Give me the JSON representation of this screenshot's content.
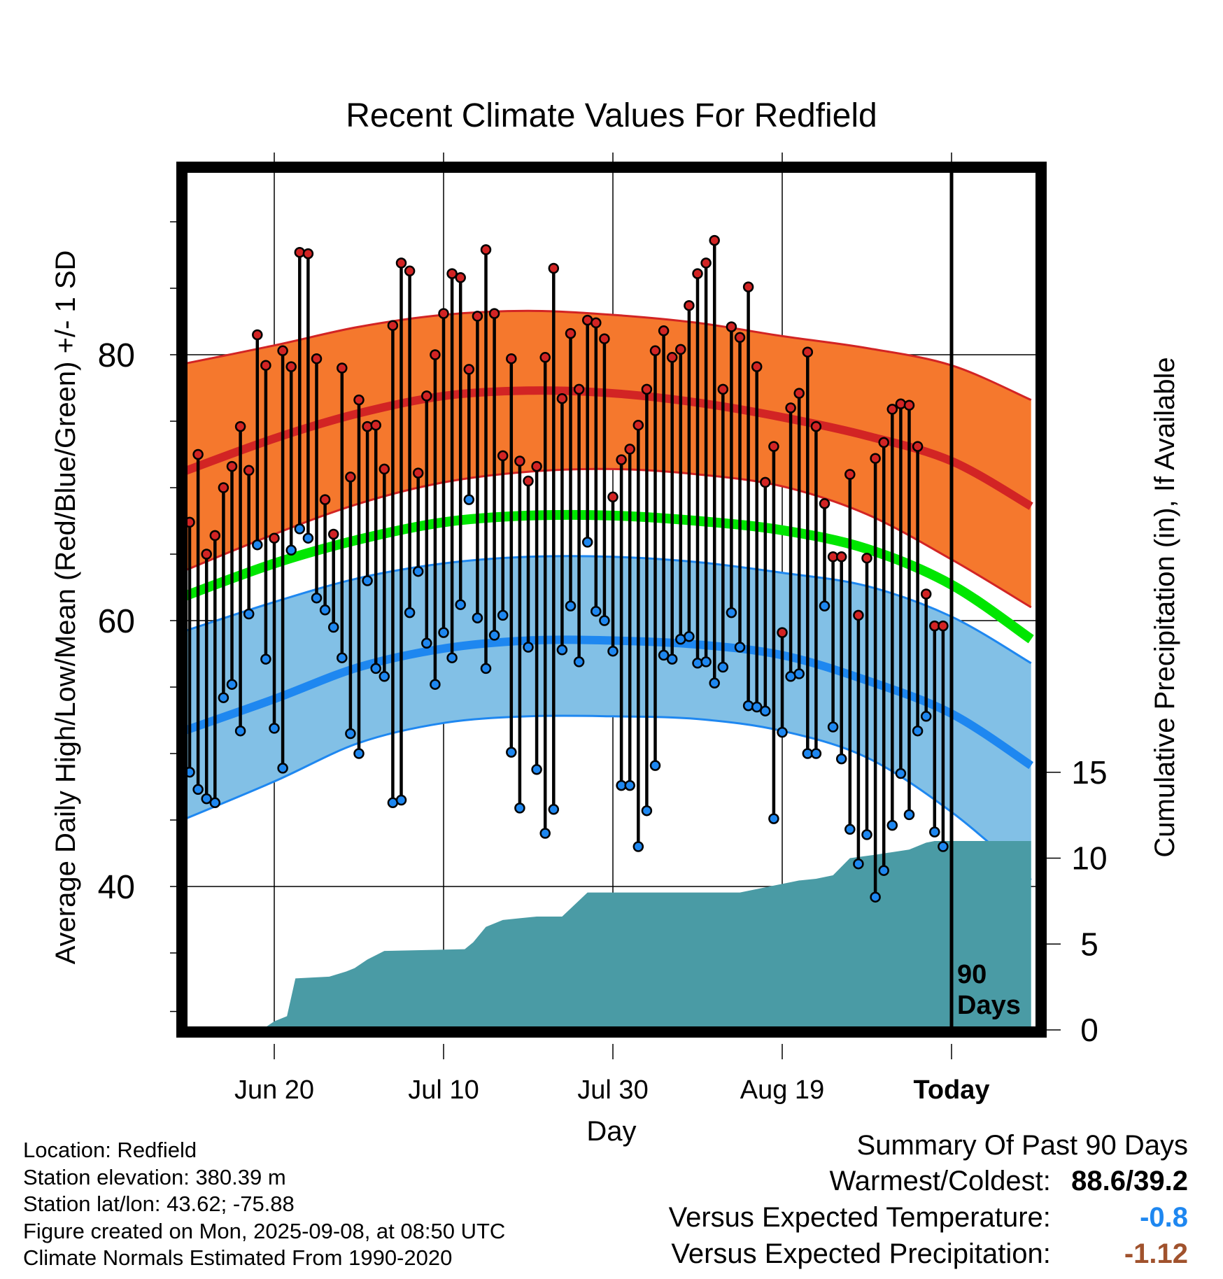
{
  "chart_data": {
    "type": "line",
    "title": "Recent Climate Values For Redfield",
    "xlabel": "Day",
    "ylabel": "Average Daily High/Low/Mean (Red/Blue/Green) +/- 1 SD",
    "y2label": "Cumulative Precipitation (in), If Available",
    "x_ticks": [
      "Jun 20",
      "Jul 10",
      "Jul 30",
      "Aug 19",
      "Today"
    ],
    "x_tick_days": [
      -80,
      -60,
      -40,
      -20,
      0
    ],
    "y_ticks": [
      40,
      60,
      80
    ],
    "y2_ticks": [
      0,
      5,
      10,
      15
    ],
    "ylim": [
      30.2,
      94.9
    ],
    "y2lim": [
      0,
      50
    ],
    "xlim": [
      -91.6,
      9.4
    ],
    "today_label": "90\nDays",
    "colors": {
      "high_band": "#f5782d",
      "high_line": "#d22424",
      "mean_line": "#00e600",
      "low_band": "#82c0e6",
      "low_line": "#1e87f0",
      "band_edge_high": "#d22424",
      "band_edge_low": "#1e87f0",
      "precip_fill": "#4a9ba5",
      "high_marker": "#d22424",
      "low_marker": "#1e87f0"
    },
    "normals": {
      "days": [
        -91.6,
        -80,
        -70,
        -60,
        -50,
        -40,
        -30,
        -20,
        -10,
        0,
        9.4
      ],
      "high_mean": [
        71.0,
        73.7,
        75.6,
        76.9,
        77.3,
        77.1,
        76.4,
        75.3,
        73.9,
        72.0,
        68.6
      ],
      "high_upper": [
        79.2,
        80.7,
        82.1,
        83.0,
        83.3,
        83.0,
        82.4,
        81.4,
        80.5,
        79.2,
        76.6
      ],
      "high_lower": [
        63.5,
        66.5,
        68.8,
        70.4,
        71.2,
        71.4,
        71.0,
        70.1,
        68.0,
        64.6,
        61.0
      ],
      "mean": [
        61.6,
        64.3,
        66.1,
        67.4,
        67.9,
        67.9,
        67.5,
        66.8,
        65.4,
        62.7,
        58.6
      ],
      "low_mean": [
        51.5,
        54.1,
        56.5,
        57.9,
        58.5,
        58.5,
        58.2,
        57.4,
        55.5,
        53.0,
        49.1
      ],
      "low_upper": [
        59.0,
        61.4,
        63.2,
        64.3,
        64.8,
        64.8,
        64.4,
        63.6,
        62.6,
        60.3,
        56.8
      ],
      "low_lower": [
        44.8,
        47.9,
        50.8,
        52.3,
        52.8,
        52.8,
        52.6,
        51.7,
        49.7,
        45.6,
        40.5
      ]
    },
    "series": [
      {
        "name": "Daily High",
        "days": [
          -90,
          -89,
          -88,
          -87,
          -86,
          -85,
          -84,
          -83,
          -82,
          -81,
          -80,
          -79,
          -78,
          -77,
          -76,
          -75,
          -74,
          -73,
          -72,
          -71,
          -70,
          -69,
          -68,
          -67,
          -66,
          -65,
          -64,
          -63,
          -62,
          -61,
          -60,
          -59,
          -58,
          -57,
          -56,
          -55,
          -54,
          -53,
          -52,
          -51,
          -50,
          -49,
          -48,
          -47,
          -46,
          -45,
          -44,
          -43,
          -42,
          -41,
          -40,
          -39,
          -38,
          -37,
          -36,
          -35,
          -34,
          -33,
          -32,
          -31,
          -30,
          -29,
          -28,
          -27,
          -26,
          -25,
          -24,
          -23,
          -22,
          -21,
          -20,
          -19,
          -18,
          -17,
          -16,
          -15,
          -14,
          -13,
          -12,
          -11,
          -10,
          -9,
          -8,
          -7,
          -6,
          -5,
          -4,
          -3,
          -2,
          -1
        ],
        "values": [
          67.4,
          72.5,
          65.0,
          66.4,
          70.0,
          71.6,
          74.6,
          71.3,
          81.5,
          79.2,
          66.2,
          80.3,
          79.1,
          87.7,
          87.6,
          79.7,
          69.1,
          66.5,
          79.0,
          70.8,
          76.6,
          74.6,
          74.7,
          71.4,
          82.2,
          86.9,
          86.3,
          71.1,
          76.9,
          80.0,
          83.1,
          86.1,
          85.8,
          78.9,
          82.9,
          87.9,
          83.1,
          72.4,
          79.7,
          72.0,
          70.5,
          71.6,
          79.8,
          86.5,
          76.7,
          81.6,
          77.4,
          82.6,
          82.4,
          81.2,
          69.3,
          72.1,
          72.9,
          74.7,
          77.4,
          80.3,
          81.8,
          79.8,
          80.4,
          83.7,
          86.1,
          86.9,
          88.6,
          77.4,
          82.1,
          81.3,
          85.1,
          79.1,
          70.4,
          73.1,
          59.1,
          76.0,
          77.1,
          80.2,
          74.6,
          68.8,
          64.8,
          64.8,
          71.0,
          60.4,
          64.7,
          72.2,
          73.4,
          75.9,
          76.3,
          76.2,
          73.1,
          62.0,
          59.6,
          59.6
        ]
      },
      {
        "name": "Daily Low",
        "days": [
          -90,
          -89,
          -88,
          -87,
          -86,
          -85,
          -84,
          -83,
          -82,
          -81,
          -80,
          -79,
          -78,
          -77,
          -76,
          -75,
          -74,
          -73,
          -72,
          -71,
          -70,
          -69,
          -68,
          -67,
          -66,
          -65,
          -64,
          -63,
          -62,
          -61,
          -60,
          -59,
          -58,
          -57,
          -56,
          -55,
          -54,
          -53,
          -52,
          -51,
          -50,
          -49,
          -48,
          -47,
          -46,
          -45,
          -44,
          -43,
          -42,
          -41,
          -40,
          -39,
          -38,
          -37,
          -36,
          -35,
          -34,
          -33,
          -32,
          -31,
          -30,
          -29,
          -28,
          -27,
          -26,
          -25,
          -24,
          -23,
          -22,
          -21,
          -20,
          -19,
          -18,
          -17,
          -16,
          -15,
          -14,
          -13,
          -12,
          -11,
          -10,
          -9,
          -8,
          -7,
          -6,
          -5,
          -4,
          -3,
          -2,
          -1
        ],
        "values": [
          48.6,
          47.3,
          46.6,
          46.3,
          54.2,
          55.2,
          51.7,
          60.5,
          65.7,
          57.1,
          51.9,
          48.9,
          65.3,
          66.9,
          66.2,
          61.7,
          60.8,
          59.5,
          57.2,
          51.5,
          50.0,
          63.0,
          56.4,
          55.8,
          46.3,
          46.5,
          60.6,
          63.7,
          58.3,
          55.2,
          59.1,
          57.2,
          61.2,
          69.1,
          60.2,
          56.4,
          58.9,
          60.4,
          50.1,
          45.9,
          58.0,
          48.8,
          44.0,
          45.8,
          57.8,
          61.1,
          56.9,
          65.9,
          60.7,
          60.0,
          57.7,
          47.6,
          47.6,
          43.0,
          45.7,
          49.1,
          57.4,
          57.1,
          58.6,
          58.8,
          56.8,
          56.9,
          55.3,
          56.5,
          60.6,
          58.0,
          53.6,
          53.5,
          53.2,
          45.1,
          51.6,
          55.8,
          56.0,
          50.0,
          50.0,
          61.1,
          52.0,
          49.6,
          44.3,
          41.7,
          43.9,
          39.2,
          41.2,
          44.6,
          48.5,
          45.4,
          51.7,
          52.8,
          44.1,
          43.0
        ]
      },
      {
        "name": "Cumulative Precipitation",
        "axis": "y2",
        "days": [
          -91.6,
          -81.5,
          -80,
          -78.5,
          -77.5,
          -73.5,
          -71.5,
          -70.5,
          -69,
          -67,
          -57.5,
          -56.5,
          -55,
          -53,
          -51,
          -49,
          -46,
          -43,
          -31,
          -25,
          -21,
          -19,
          -18,
          -16,
          -14,
          -13,
          -12,
          -9,
          -5,
          -3,
          -2,
          -1,
          9.4
        ],
        "values": [
          0,
          0,
          0.5,
          0.8,
          3.0,
          3.1,
          3.4,
          3.6,
          4.1,
          4.6,
          4.7,
          5.1,
          6.0,
          6.4,
          6.5,
          6.6,
          6.6,
          8.0,
          8.0,
          8.0,
          8.4,
          8.6,
          8.7,
          8.8,
          9.0,
          9.5,
          10.0,
          10.2,
          10.5,
          10.9,
          11.0,
          11.0,
          11.0
        ]
      }
    ],
    "annotations": {
      "today_marker_day": 0
    }
  },
  "info": {
    "location": "Location: Redfield",
    "elevation": "Station elevation: 380.39 m",
    "latlon": "Station lat/lon: 43.62; -75.88",
    "created": "Figure created on Mon, 2025-09-08, at 08:50 UTC",
    "normals": "Climate Normals Estimated From 1990-2020"
  },
  "summary": {
    "title": "Summary Of Past 90 Days",
    "warmest_label": "Warmest/Coldest:",
    "warmest_value": "88.6/39.2",
    "temp_label": "Versus Expected Temperature:",
    "temp_value": "-0.8",
    "temp_color": "#1e87f0",
    "precip_label": "Versus Expected Precipitation:",
    "precip_value": "-1.12",
    "precip_color": "#a0522d"
  }
}
